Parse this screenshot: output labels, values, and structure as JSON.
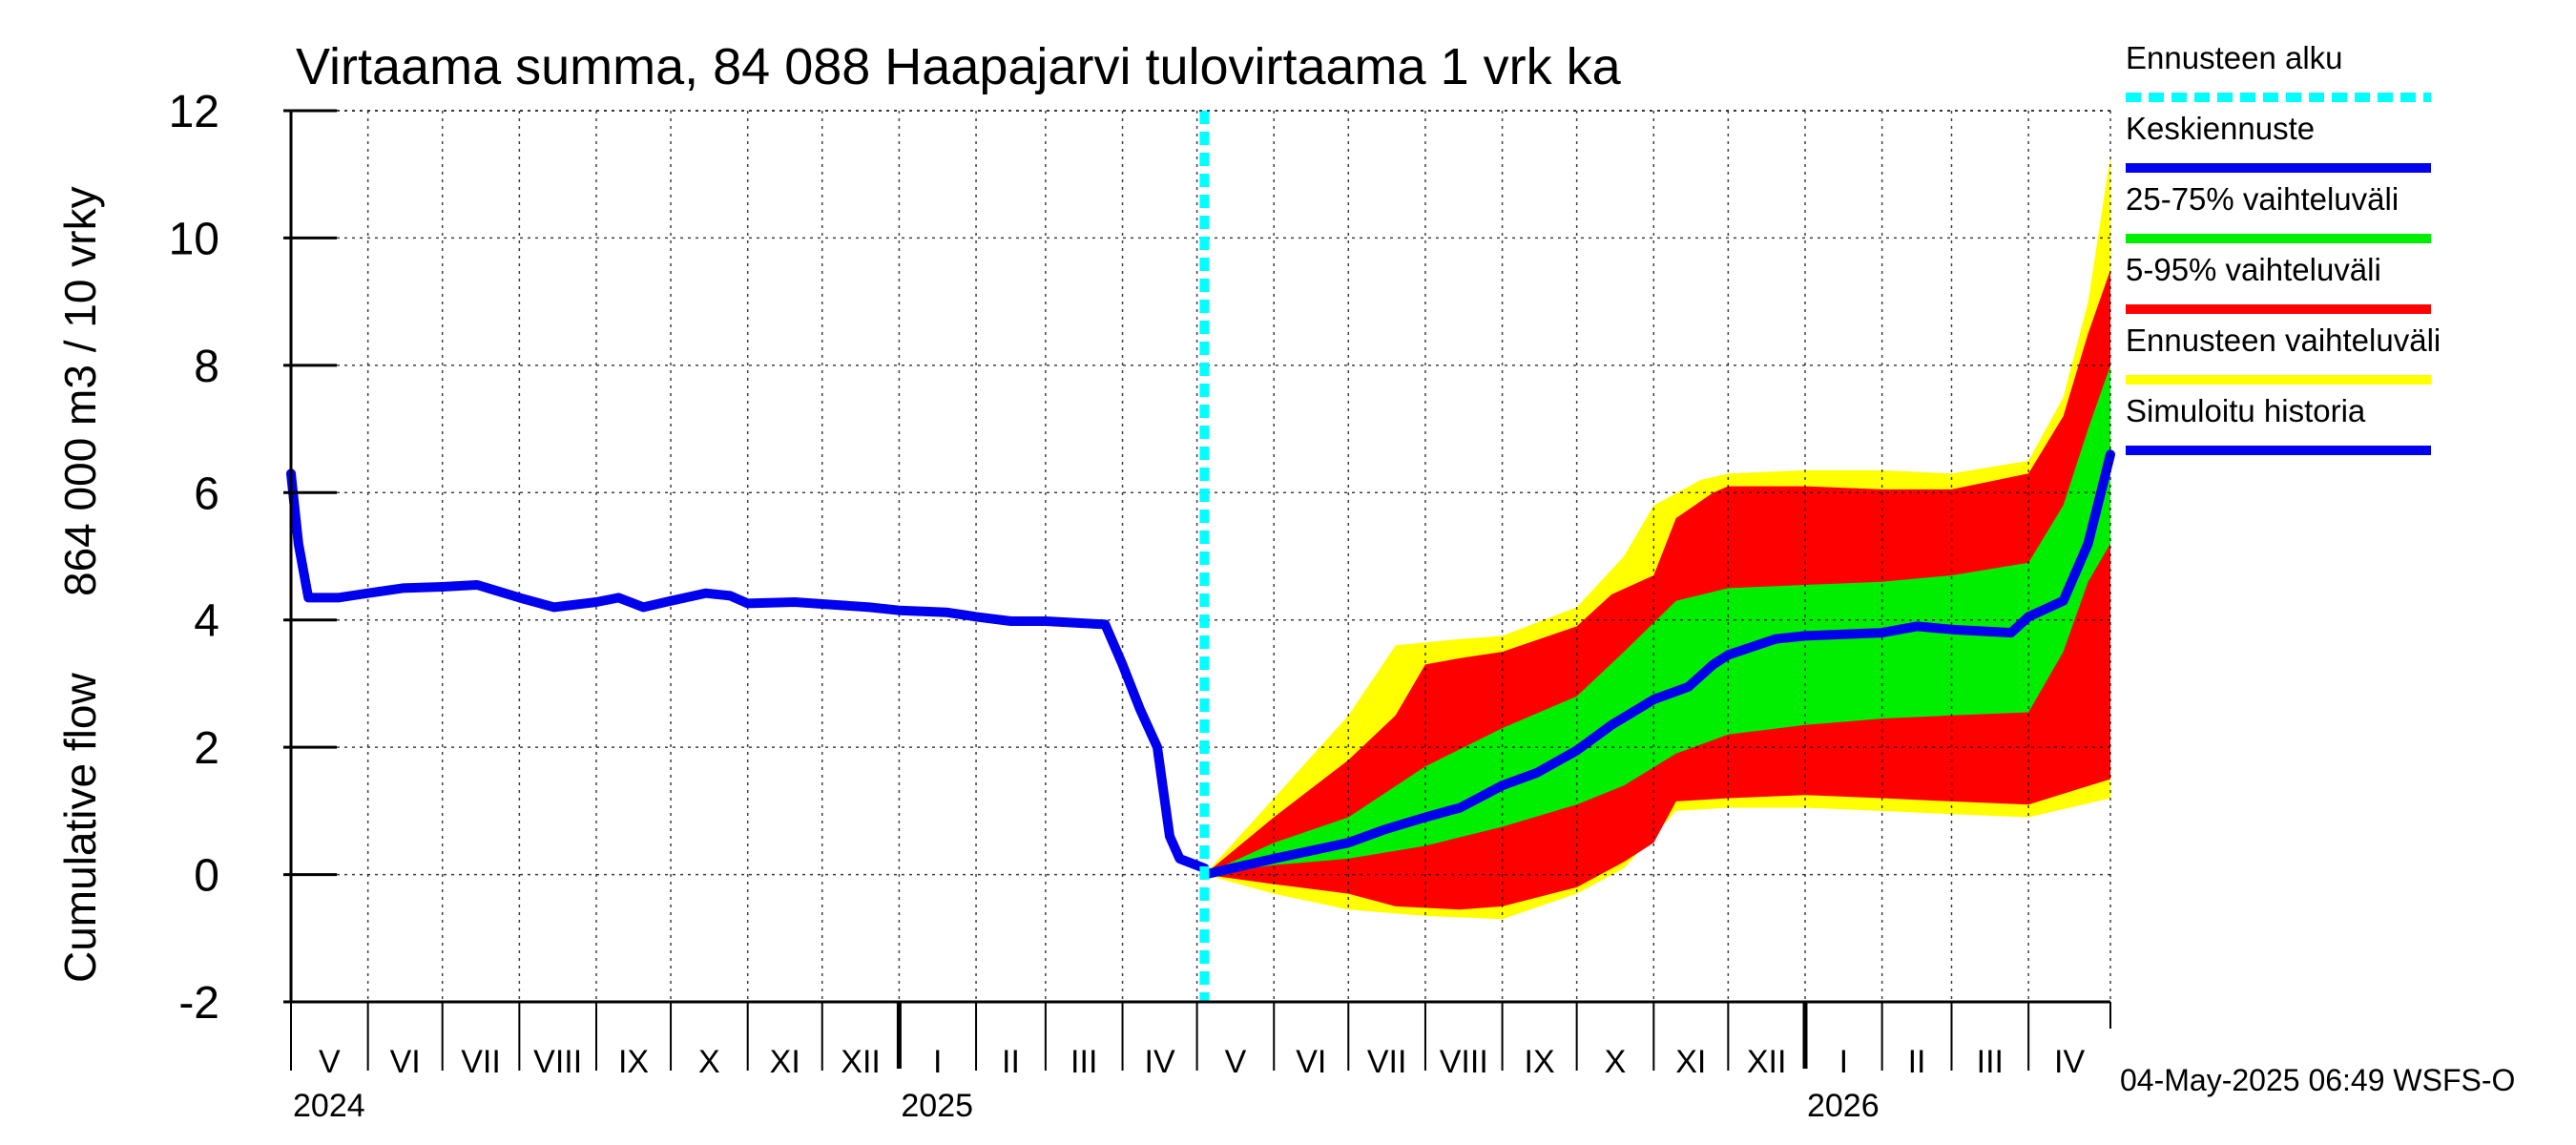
{
  "chart_data": {
    "type": "area",
    "title": "Virtaama summa, 84 088 Haapajarvi tulovirtaama 1 vrk ka",
    "ylabel_line1": "Cumulative flow",
    "ylabel_line2": "864 000 m3 / 10 vrky",
    "ylim": [
      -2,
      12
    ],
    "yticks": [
      "-2",
      "0",
      "2",
      "4",
      "6",
      "8",
      "10",
      "12"
    ],
    "x_range": [
      "2024-05-01",
      "2026-05-04"
    ],
    "forecast_start": "2025-05-04",
    "months": [
      {
        "label": "V",
        "start": "2024-05-01"
      },
      {
        "label": "VI",
        "start": "2024-06-01"
      },
      {
        "label": "VII",
        "start": "2024-07-01"
      },
      {
        "label": "VIII",
        "start": "2024-08-01"
      },
      {
        "label": "IX",
        "start": "2024-09-01"
      },
      {
        "label": "X",
        "start": "2024-10-01"
      },
      {
        "label": "XI",
        "start": "2024-11-01"
      },
      {
        "label": "XII",
        "start": "2024-12-01"
      },
      {
        "label": "I",
        "start": "2025-01-01"
      },
      {
        "label": "II",
        "start": "2025-02-01"
      },
      {
        "label": "III",
        "start": "2025-03-01"
      },
      {
        "label": "IV",
        "start": "2025-04-01"
      },
      {
        "label": "V",
        "start": "2025-05-01"
      },
      {
        "label": "VI",
        "start": "2025-06-01"
      },
      {
        "label": "VII",
        "start": "2025-07-01"
      },
      {
        "label": "VIII",
        "start": "2025-08-01"
      },
      {
        "label": "IX",
        "start": "2025-09-01"
      },
      {
        "label": "X",
        "start": "2025-10-01"
      },
      {
        "label": "XI",
        "start": "2025-11-01"
      },
      {
        "label": "XII",
        "start": "2025-12-01"
      },
      {
        "label": "I",
        "start": "2026-01-01"
      },
      {
        "label": "II",
        "start": "2026-02-01"
      },
      {
        "label": "III",
        "start": "2026-03-01"
      },
      {
        "label": "IV",
        "start": "2026-04-01"
      }
    ],
    "years": [
      {
        "label": "2024",
        "start": "2024-05-01"
      },
      {
        "label": "2025",
        "start": "2025-01-01"
      },
      {
        "label": "2026",
        "start": "2026-01-01"
      }
    ],
    "series": [
      {
        "name": "Simuloitu historia",
        "color": "#0000ee",
        "points": [
          [
            "2024-05-01",
            6.3
          ],
          [
            "2024-05-04",
            5.2
          ],
          [
            "2024-05-08",
            4.35
          ],
          [
            "2024-05-20",
            4.35
          ],
          [
            "2024-06-01",
            4.42
          ],
          [
            "2024-06-15",
            4.5
          ],
          [
            "2024-07-01",
            4.52
          ],
          [
            "2024-07-15",
            4.55
          ],
          [
            "2024-08-01",
            4.35
          ],
          [
            "2024-08-15",
            4.2
          ],
          [
            "2024-09-01",
            4.28
          ],
          [
            "2024-09-10",
            4.35
          ],
          [
            "2024-09-20",
            4.2
          ],
          [
            "2024-10-01",
            4.3
          ],
          [
            "2024-10-15",
            4.42
          ],
          [
            "2024-10-25",
            4.38
          ],
          [
            "2024-11-01",
            4.26
          ],
          [
            "2024-11-20",
            4.28
          ],
          [
            "2024-12-01",
            4.25
          ],
          [
            "2024-12-20",
            4.2
          ],
          [
            "2025-01-01",
            4.15
          ],
          [
            "2025-01-20",
            4.12
          ],
          [
            "2025-02-01",
            4.05
          ],
          [
            "2025-02-15",
            3.98
          ],
          [
            "2025-03-01",
            3.98
          ],
          [
            "2025-03-15",
            3.95
          ],
          [
            "2025-03-25",
            3.93
          ],
          [
            "2025-04-01",
            3.3
          ],
          [
            "2025-04-08",
            2.6
          ],
          [
            "2025-04-15",
            2.0
          ],
          [
            "2025-04-20",
            0.6
          ],
          [
            "2025-04-24",
            0.25
          ],
          [
            "2025-05-04",
            0.1
          ]
        ]
      },
      {
        "name": "Keskiennuste",
        "color": "#0000ee",
        "points": [
          [
            "2025-05-04",
            0.0
          ],
          [
            "2025-06-01",
            0.25
          ],
          [
            "2025-07-01",
            0.5
          ],
          [
            "2025-07-15",
            0.7
          ],
          [
            "2025-08-01",
            0.9
          ],
          [
            "2025-08-15",
            1.05
          ],
          [
            "2025-09-01",
            1.4
          ],
          [
            "2025-09-15",
            1.6
          ],
          [
            "2025-10-01",
            1.95
          ],
          [
            "2025-10-15",
            2.35
          ],
          [
            "2025-11-01",
            2.75
          ],
          [
            "2025-11-15",
            2.95
          ],
          [
            "2025-11-25",
            3.3
          ],
          [
            "2025-12-01",
            3.45
          ],
          [
            "2025-12-20",
            3.7
          ],
          [
            "2026-01-01",
            3.75
          ],
          [
            "2026-02-01",
            3.8
          ],
          [
            "2026-02-15",
            3.9
          ],
          [
            "2026-03-01",
            3.85
          ],
          [
            "2026-03-25",
            3.8
          ],
          [
            "2026-04-01",
            4.05
          ],
          [
            "2026-04-15",
            4.3
          ],
          [
            "2026-04-25",
            5.2
          ],
          [
            "2026-05-04",
            6.6
          ]
        ]
      }
    ],
    "bands": [
      {
        "name": "Ennusteen vaihteluväli",
        "color": "#ffff00",
        "upper": [
          [
            "2025-05-04",
            0.0
          ],
          [
            "2025-06-01",
            1.2
          ],
          [
            "2025-07-01",
            2.5
          ],
          [
            "2025-07-20",
            3.6
          ],
          [
            "2025-08-15",
            3.7
          ],
          [
            "2025-09-01",
            3.75
          ],
          [
            "2025-10-01",
            4.2
          ],
          [
            "2025-10-20",
            5.0
          ],
          [
            "2025-11-01",
            5.8
          ],
          [
            "2025-11-20",
            6.2
          ],
          [
            "2025-12-01",
            6.3
          ],
          [
            "2026-01-01",
            6.35
          ],
          [
            "2026-02-01",
            6.35
          ],
          [
            "2026-03-01",
            6.3
          ],
          [
            "2026-04-01",
            6.5
          ],
          [
            "2026-04-15",
            7.5
          ],
          [
            "2026-04-25",
            9.0
          ],
          [
            "2026-05-04",
            11.3
          ]
        ],
        "lower": [
          [
            "2025-05-04",
            0.0
          ],
          [
            "2025-06-01",
            -0.3
          ],
          [
            "2025-07-01",
            -0.55
          ],
          [
            "2025-08-01",
            -0.65
          ],
          [
            "2025-09-01",
            -0.7
          ],
          [
            "2025-10-01",
            -0.3
          ],
          [
            "2025-10-20",
            0.1
          ],
          [
            "2025-11-10",
            1.0
          ],
          [
            "2025-12-01",
            1.05
          ],
          [
            "2026-01-01",
            1.05
          ],
          [
            "2026-02-01",
            1.0
          ],
          [
            "2026-03-01",
            0.95
          ],
          [
            "2026-04-01",
            0.9
          ],
          [
            "2026-05-04",
            1.2
          ]
        ]
      },
      {
        "name": "5-95% vaihteluväli",
        "color": "#ff0000",
        "upper": [
          [
            "2025-05-04",
            0.0
          ],
          [
            "2025-06-01",
            0.9
          ],
          [
            "2025-07-01",
            1.8
          ],
          [
            "2025-07-20",
            2.5
          ],
          [
            "2025-08-01",
            3.3
          ],
          [
            "2025-08-15",
            3.4
          ],
          [
            "2025-09-01",
            3.5
          ],
          [
            "2025-10-01",
            3.9
          ],
          [
            "2025-10-15",
            4.4
          ],
          [
            "2025-11-01",
            4.7
          ],
          [
            "2025-11-10",
            5.6
          ],
          [
            "2025-11-25",
            6.0
          ],
          [
            "2025-12-01",
            6.1
          ],
          [
            "2026-01-01",
            6.1
          ],
          [
            "2026-02-01",
            6.05
          ],
          [
            "2026-03-01",
            6.05
          ],
          [
            "2026-04-01",
            6.3
          ],
          [
            "2026-04-15",
            7.2
          ],
          [
            "2026-04-25",
            8.5
          ],
          [
            "2026-05-04",
            9.5
          ]
        ],
        "lower": [
          [
            "2025-05-04",
            0.0
          ],
          [
            "2025-06-01",
            -0.15
          ],
          [
            "2025-07-01",
            -0.3
          ],
          [
            "2025-07-20",
            -0.5
          ],
          [
            "2025-08-15",
            -0.55
          ],
          [
            "2025-09-01",
            -0.5
          ],
          [
            "2025-10-01",
            -0.2
          ],
          [
            "2025-10-20",
            0.2
          ],
          [
            "2025-11-01",
            0.5
          ],
          [
            "2025-11-10",
            1.15
          ],
          [
            "2025-12-01",
            1.2
          ],
          [
            "2026-01-01",
            1.25
          ],
          [
            "2026-02-01",
            1.2
          ],
          [
            "2026-03-01",
            1.15
          ],
          [
            "2026-04-01",
            1.1
          ],
          [
            "2026-05-04",
            1.5
          ]
        ]
      },
      {
        "name": "25-75% vaihteluväli",
        "color": "#00ee00",
        "upper": [
          [
            "2025-05-04",
            0.0
          ],
          [
            "2025-06-01",
            0.5
          ],
          [
            "2025-07-01",
            0.9
          ],
          [
            "2025-08-01",
            1.7
          ],
          [
            "2025-09-01",
            2.3
          ],
          [
            "2025-10-01",
            2.8
          ],
          [
            "2025-10-20",
            3.5
          ],
          [
            "2025-11-10",
            4.3
          ],
          [
            "2025-12-01",
            4.5
          ],
          [
            "2026-01-01",
            4.55
          ],
          [
            "2026-02-01",
            4.6
          ],
          [
            "2026-03-01",
            4.7
          ],
          [
            "2026-04-01",
            4.9
          ],
          [
            "2026-04-15",
            5.8
          ],
          [
            "2026-04-25",
            7.0
          ],
          [
            "2026-05-04",
            8.0
          ]
        ],
        "lower": [
          [
            "2025-05-04",
            0.0
          ],
          [
            "2025-06-01",
            0.15
          ],
          [
            "2025-07-01",
            0.25
          ],
          [
            "2025-08-01",
            0.45
          ],
          [
            "2025-09-01",
            0.75
          ],
          [
            "2025-10-01",
            1.1
          ],
          [
            "2025-10-20",
            1.4
          ],
          [
            "2025-11-10",
            1.9
          ],
          [
            "2025-12-01",
            2.2
          ],
          [
            "2026-01-01",
            2.35
          ],
          [
            "2026-02-01",
            2.45
          ],
          [
            "2026-03-01",
            2.5
          ],
          [
            "2026-04-01",
            2.55
          ],
          [
            "2026-04-15",
            3.5
          ],
          [
            "2026-04-25",
            4.6
          ],
          [
            "2026-05-04",
            5.2
          ]
        ]
      }
    ],
    "legend": [
      {
        "label": "Ennusteen alku",
        "color": "#00ffff",
        "style": "dashed"
      },
      {
        "label": "Keskiennuste",
        "color": "#0000ee",
        "style": "solid"
      },
      {
        "label": "25-75% vaihteluväli",
        "color": "#00ee00",
        "style": "solid"
      },
      {
        "label": "5-95% vaihteluväli",
        "color": "#ff0000",
        "style": "solid"
      },
      {
        "label": "Ennusteen vaihteluväli",
        "color": "#ffff00",
        "style": "solid"
      },
      {
        "label": "Simuloitu historia",
        "color": "#0000ee",
        "style": "solid"
      }
    ],
    "legend_position": "right",
    "grid": true,
    "footer": "04-May-2025 06:49 WSFS-O"
  }
}
